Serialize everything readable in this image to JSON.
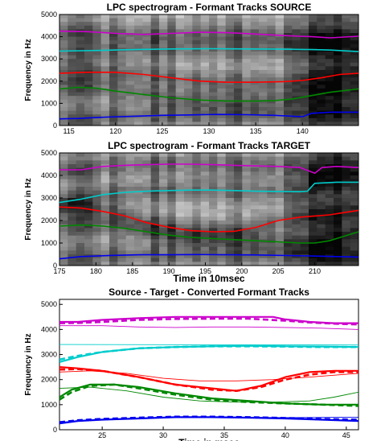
{
  "chart_data": [
    {
      "type": "heatmap",
      "title": "LPC spectrogram - Formant Tracks SOURCE",
      "xlabel": "",
      "ylabel": "Frequency in Hz",
      "xlim": [
        114,
        146
      ],
      "ylim": [
        0,
        5000
      ],
      "xticks": [
        115,
        120,
        125,
        130,
        135,
        140
      ],
      "yticks": [
        0,
        1000,
        2000,
        3000,
        4000,
        5000
      ],
      "series": [
        {
          "color": "#cc00cc",
          "x": [
            114,
            117,
            120,
            123,
            126,
            129,
            132,
            135,
            138,
            141,
            143,
            146
          ],
          "y": [
            4250,
            4230,
            4150,
            4100,
            4150,
            4200,
            4180,
            4120,
            4050,
            4000,
            3950,
            4020
          ]
        },
        {
          "color": "#00cccc",
          "x": [
            114,
            118,
            122,
            126,
            130,
            134,
            138,
            141,
            143,
            146
          ],
          "y": [
            3350,
            3380,
            3420,
            3450,
            3460,
            3450,
            3440,
            3420,
            3400,
            3330
          ]
        },
        {
          "color": "#ff0000",
          "x": [
            114,
            117,
            120,
            123,
            126,
            129,
            132,
            135,
            138,
            140,
            142,
            144,
            146
          ],
          "y": [
            2350,
            2400,
            2400,
            2300,
            2150,
            2000,
            1950,
            1950,
            1980,
            2030,
            2150,
            2300,
            2350
          ]
        },
        {
          "color": "#008800",
          "x": [
            114,
            116,
            118,
            120,
            123,
            126,
            129,
            132,
            135,
            137,
            139,
            141,
            143,
            146
          ],
          "y": [
            1650,
            1720,
            1680,
            1550,
            1400,
            1250,
            1150,
            1100,
            1100,
            1120,
            1200,
            1350,
            1500,
            1650
          ]
        },
        {
          "color": "#0000ee",
          "x": [
            114,
            116,
            119,
            122,
            125,
            128,
            131,
            134,
            137,
            139,
            140,
            141,
            143,
            146
          ],
          "y": [
            300,
            320,
            380,
            420,
            460,
            480,
            500,
            490,
            460,
            420,
            400,
            550,
            600,
            600
          ]
        }
      ]
    },
    {
      "type": "heatmap",
      "title": "LPC spectrogram - Formant Tracks TARGET",
      "xlabel": "Time in 10msec",
      "ylabel": "Frequency in Hz",
      "xlim": [
        175,
        216
      ],
      "ylim": [
        0,
        5000
      ],
      "xticks": [
        175,
        180,
        185,
        190,
        195,
        200,
        205,
        210
      ],
      "yticks": [
        0,
        1000,
        2000,
        3000,
        4000,
        5000
      ],
      "series": [
        {
          "color": "#cc00cc",
          "x": [
            175,
            178,
            181,
            184,
            187,
            190,
            193,
            196,
            199,
            202,
            205,
            208,
            210,
            211,
            213,
            216
          ],
          "y": [
            4250,
            4250,
            4400,
            4450,
            4480,
            4500,
            4500,
            4480,
            4450,
            4420,
            4400,
            4350,
            4100,
            4350,
            4400,
            4350
          ]
        },
        {
          "color": "#00cccc",
          "x": [
            175,
            178,
            181,
            184,
            187,
            190,
            193,
            196,
            199,
            202,
            205,
            208,
            209,
            210,
            213,
            216
          ],
          "y": [
            2800,
            2950,
            3150,
            3250,
            3300,
            3330,
            3350,
            3350,
            3330,
            3300,
            3290,
            3280,
            3300,
            3650,
            3700,
            3700
          ]
        },
        {
          "color": "#ff0000",
          "x": [
            175,
            178,
            181,
            184,
            187,
            190,
            193,
            196,
            199,
            202,
            205,
            208,
            210,
            212,
            214,
            216
          ],
          "y": [
            2600,
            2550,
            2400,
            2200,
            1900,
            1700,
            1550,
            1500,
            1520,
            1700,
            2000,
            2150,
            2200,
            2250,
            2350,
            2450
          ]
        },
        {
          "color": "#008800",
          "x": [
            175,
            178,
            181,
            184,
            187,
            190,
            193,
            196,
            199,
            202,
            205,
            208,
            210,
            212,
            214,
            216
          ],
          "y": [
            1750,
            1800,
            1750,
            1650,
            1500,
            1350,
            1250,
            1200,
            1150,
            1100,
            1050,
            1000,
            1000,
            1100,
            1300,
            1500
          ]
        },
        {
          "color": "#0000ee",
          "x": [
            175,
            178,
            182,
            186,
            190,
            194,
            198,
            202,
            206,
            210,
            213,
            216
          ],
          "y": [
            300,
            400,
            450,
            480,
            480,
            490,
            480,
            470,
            450,
            420,
            400,
            380
          ]
        }
      ]
    },
    {
      "type": "line",
      "title": "Source - Target - Converted Formant Tracks",
      "xlabel": "Time in msec",
      "ylabel": "Frequency in Hz",
      "xlim": [
        21.5,
        46
      ],
      "ylim": [
        0,
        5200
      ],
      "xticks": [
        25,
        30,
        35,
        40,
        45
      ],
      "yticks": [
        0,
        1000,
        2000,
        3000,
        4000,
        5000
      ],
      "series": [
        {
          "color": "#cc00cc",
          "style": "thick",
          "x": [
            21.5,
            23,
            25,
            28,
            31,
            34,
            37,
            39,
            40,
            42,
            44,
            46
          ],
          "y": [
            4300,
            4300,
            4380,
            4450,
            4500,
            4500,
            4500,
            4500,
            4400,
            4300,
            4250,
            4250
          ]
        },
        {
          "color": "#cc00cc",
          "style": "dashed",
          "x": [
            21.5,
            23,
            25,
            28,
            31,
            34,
            37,
            40,
            42,
            44,
            46
          ],
          "y": [
            4250,
            4260,
            4300,
            4380,
            4420,
            4430,
            4430,
            4350,
            4280,
            4230,
            4200
          ]
        },
        {
          "color": "#cc00cc",
          "style": "thin",
          "x": [
            21.5,
            25,
            28,
            31,
            34,
            37,
            40,
            43,
            46
          ],
          "y": [
            4150,
            4150,
            4100,
            4080,
            4100,
            4100,
            4080,
            4050,
            4000
          ]
        },
        {
          "color": "#00cccc",
          "style": "thick",
          "x": [
            21.5,
            23,
            25,
            28,
            31,
            34,
            37,
            40,
            43,
            46
          ],
          "y": [
            2700,
            2900,
            3100,
            3250,
            3300,
            3330,
            3350,
            3330,
            3320,
            3300
          ]
        },
        {
          "color": "#00cccc",
          "style": "dashed",
          "x": [
            21.5,
            23,
            25,
            28,
            31,
            34,
            37,
            40,
            43,
            46
          ],
          "y": [
            2800,
            2950,
            3100,
            3250,
            3300,
            3330,
            3330,
            3320,
            3300,
            3300
          ]
        },
        {
          "color": "#00cccc",
          "style": "thin",
          "x": [
            21.5,
            46
          ],
          "y": [
            3400,
            3380
          ]
        },
        {
          "color": "#ff0000",
          "style": "thick",
          "x": [
            21.5,
            23,
            25,
            28,
            31,
            34,
            36,
            38,
            40,
            42,
            44,
            46
          ],
          "y": [
            2500,
            2450,
            2350,
            2100,
            1800,
            1650,
            1550,
            1750,
            2100,
            2300,
            2350,
            2350
          ]
        },
        {
          "color": "#ff0000",
          "style": "dashed",
          "x": [
            21.5,
            23,
            25,
            28,
            31,
            34,
            36,
            38,
            40,
            42,
            44,
            46
          ],
          "y": [
            2400,
            2420,
            2350,
            2100,
            1800,
            1600,
            1550,
            1700,
            2000,
            2200,
            2300,
            2300
          ]
        },
        {
          "color": "#ff0000",
          "style": "thin",
          "x": [
            21.5,
            24,
            27,
            30,
            33,
            36,
            39,
            42,
            46
          ],
          "y": [
            2300,
            2350,
            2250,
            2050,
            1950,
            1950,
            2000,
            2100,
            2250
          ]
        },
        {
          "color": "#008800",
          "style": "thick",
          "x": [
            21.5,
            22.5,
            24,
            26,
            28,
            31,
            34,
            37,
            40,
            43,
            46
          ],
          "y": [
            1300,
            1600,
            1800,
            1800,
            1700,
            1450,
            1250,
            1150,
            1050,
            1000,
            1000
          ]
        },
        {
          "color": "#008800",
          "style": "dashed",
          "x": [
            21.5,
            22.5,
            24,
            26,
            28,
            31,
            34,
            37,
            40,
            43,
            46
          ],
          "y": [
            1200,
            1500,
            1750,
            1800,
            1650,
            1400,
            1200,
            1100,
            1050,
            1000,
            950
          ]
        },
        {
          "color": "#008800",
          "style": "thin",
          "x": [
            21.5,
            24,
            27,
            30,
            33,
            36,
            39,
            42,
            44,
            46
          ],
          "y": [
            1650,
            1700,
            1550,
            1300,
            1150,
            1100,
            1100,
            1150,
            1300,
            1500
          ]
        },
        {
          "color": "#0000ee",
          "style": "thick",
          "x": [
            21.5,
            23,
            25,
            28,
            31,
            34,
            37,
            40,
            43,
            46
          ],
          "y": [
            250,
            350,
            400,
            450,
            500,
            500,
            480,
            450,
            400,
            350
          ]
        },
        {
          "color": "#0000ee",
          "style": "dashed",
          "x": [
            21.5,
            23,
            25,
            28,
            31,
            34,
            37,
            40,
            43,
            46
          ],
          "y": [
            300,
            380,
            430,
            480,
            520,
            520,
            500,
            470,
            430,
            400
          ]
        },
        {
          "color": "#0000ee",
          "style": "thin",
          "x": [
            21.5,
            25,
            30,
            35,
            40,
            46
          ],
          "y": [
            300,
            400,
            480,
            500,
            480,
            500
          ]
        }
      ]
    }
  ]
}
